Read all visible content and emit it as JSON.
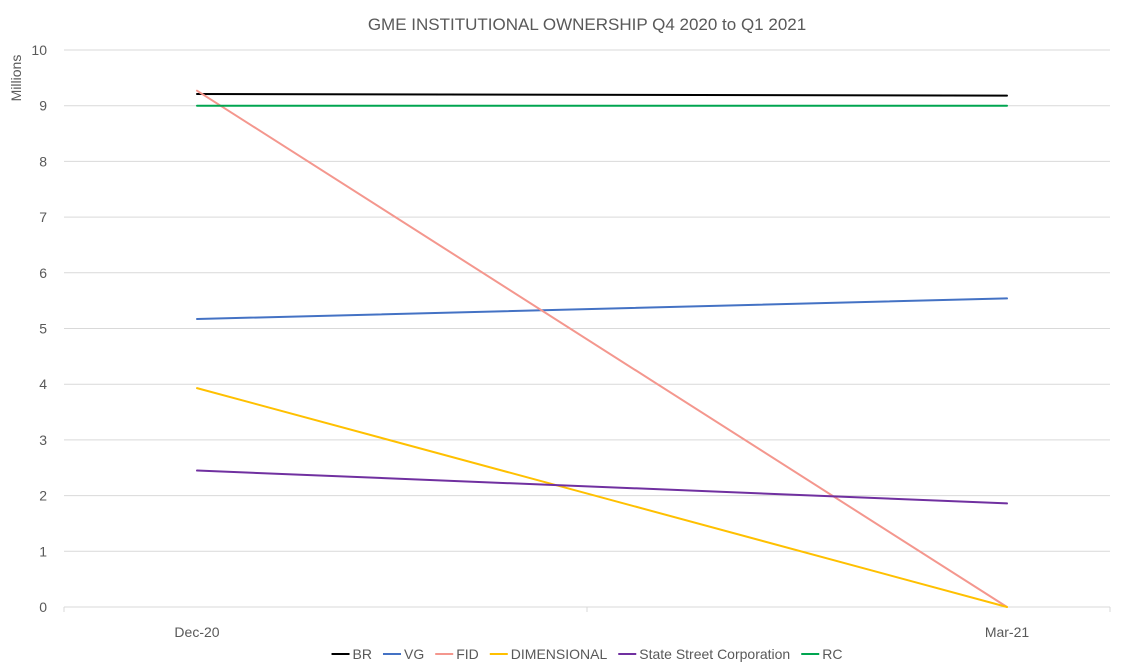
{
  "chart_data": {
    "type": "line",
    "title": "GME INSTITUTIONAL OWNERSHIP Q4 2020 to Q1 2021",
    "xlabel": "",
    "ylabel": "Millions",
    "categories": [
      "Dec-20",
      "Mar-21"
    ],
    "ylim": [
      0,
      10
    ],
    "yticks": [
      0,
      1,
      2,
      3,
      4,
      5,
      6,
      7,
      8,
      9,
      10
    ],
    "grid": true,
    "legend_position": "bottom",
    "series": [
      {
        "name": "BR",
        "values": [
          9.21,
          9.18
        ],
        "color": "#000000"
      },
      {
        "name": "VG",
        "values": [
          5.17,
          5.54
        ],
        "color": "#4472C4"
      },
      {
        "name": "FID",
        "values": [
          9.27,
          0.0
        ],
        "color": "#F4978E"
      },
      {
        "name": "DIMENSIONAL",
        "values": [
          3.93,
          0.0
        ],
        "color": "#FFC000"
      },
      {
        "name": "State Street Corporation",
        "values": [
          2.45,
          1.86
        ],
        "color": "#7030A0"
      },
      {
        "name": "RC",
        "values": [
          9.0,
          9.0
        ],
        "color": "#00A550"
      }
    ]
  }
}
